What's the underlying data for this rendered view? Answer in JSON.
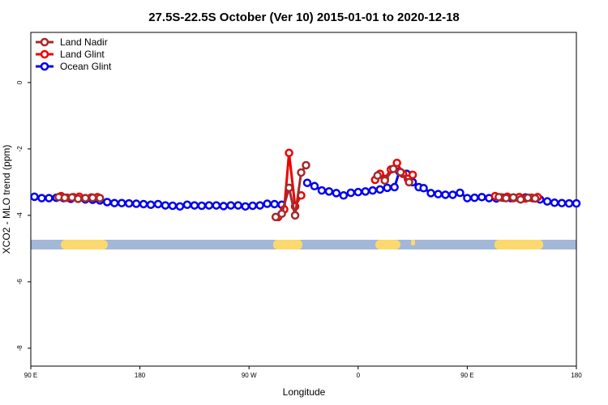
{
  "chart_data": {
    "type": "line",
    "title": "27.5S-22.5S October (Ver 10)   2015-01-01 to 2020-12-18",
    "x_label": "Longitude",
    "y_label": "XCO2 - MLO trend (ppm)",
    "xlim": [
      90,
      540
    ],
    "ylim": [
      -8.54,
      1.51
    ],
    "xticks": [
      {
        "value": 90,
        "label": "90 E"
      },
      180,
      {
        "value": 270,
        "label": "90 W"
      },
      {
        "value": 360,
        "label": "0"
      },
      {
        "value": 450,
        "label": "90 E"
      },
      {
        "value": 540,
        "label": "180"
      }
    ],
    "yticks": [
      0,
      -2,
      -4,
      -6,
      -8
    ],
    "legend": "top-left",
    "series": [
      {
        "name": "Land Nadir",
        "color": "#a52a2a",
        "x": [
          113,
          118,
          124,
          129,
          135,
          141,
          147,
          200,
          292,
          297,
          303,
          308,
          313,
          317,
          350,
          376,
          382,
          389,
          395,
          402,
          440,
          476,
          482,
          488,
          494,
          500,
          506
        ],
        "values": [
          -3.45,
          -3.47,
          -3.46,
          -3.5,
          -3.48,
          -3.47,
          -3.48,
          null,
          -4.05,
          -3.95,
          -3.17,
          -4.0,
          -2.71,
          -2.49,
          null,
          -2.8,
          -2.95,
          -2.6,
          -2.7,
          -3.0,
          null,
          -3.45,
          -3.48,
          -3.46,
          -3.52,
          -3.47,
          -3.49
        ]
      },
      {
        "name": "Land Glint",
        "color": "#ee0000",
        "x": [
          115,
          120,
          125,
          130,
          135,
          140,
          145,
          200,
          294,
          299,
          303,
          308,
          313,
          350,
          374,
          378,
          382,
          387,
          392,
          397,
          401,
          405,
          440,
          473,
          478,
          483,
          488,
          493,
          498,
          503,
          508
        ],
        "values": [
          -3.42,
          -3.47,
          -3.45,
          -3.44,
          -3.48,
          -3.46,
          -3.45,
          null,
          -4.05,
          -3.82,
          -2.12,
          -3.73,
          -3.4,
          null,
          -2.93,
          -2.75,
          -2.9,
          -2.62,
          -2.42,
          -2.75,
          -2.9,
          -2.78,
          null,
          -3.42,
          -3.46,
          -3.44,
          -3.48,
          -3.45,
          -3.49,
          -3.47,
          -3.45
        ]
      },
      {
        "name": "Ocean Glint",
        "color": "#0000ee",
        "x": [
          93,
          99,
          105,
          111,
          117,
          123,
          129,
          135,
          141,
          147,
          153,
          159,
          165,
          171,
          177,
          183,
          189,
          195,
          201,
          207,
          213,
          219,
          225,
          231,
          237,
          243,
          249,
          255,
          261,
          267,
          273,
          279,
          285,
          291,
          297,
          303,
          318,
          324,
          330,
          336,
          342,
          348,
          354,
          360,
          366,
          372,
          378,
          384,
          390,
          394,
          400,
          405,
          410,
          414,
          420,
          426,
          432,
          438,
          444,
          450,
          456,
          462,
          468,
          474,
          480,
          486,
          492,
          498,
          504,
          510,
          516,
          522,
          528,
          534,
          540
        ],
        "values": [
          -3.44,
          -3.48,
          -3.48,
          -3.47,
          -3.48,
          -3.5,
          -3.5,
          -3.52,
          -3.53,
          -3.55,
          -3.6,
          -3.63,
          -3.63,
          -3.64,
          -3.65,
          -3.66,
          -3.68,
          -3.66,
          -3.7,
          -3.71,
          -3.73,
          -3.68,
          -3.7,
          -3.71,
          -3.7,
          -3.7,
          -3.72,
          -3.7,
          -3.7,
          -3.73,
          -3.71,
          -3.7,
          -3.65,
          -3.66,
          -3.68,
          null,
          -3.02,
          -3.12,
          -3.25,
          -3.28,
          -3.33,
          -3.4,
          -3.32,
          -3.3,
          -3.28,
          -3.25,
          -3.22,
          -3.17,
          -3.15,
          -2.68,
          -2.75,
          -3.0,
          -3.15,
          -3.18,
          -3.33,
          -3.36,
          -3.38,
          -3.38,
          -3.32,
          -3.48,
          -3.47,
          -3.45,
          -3.48,
          -3.49,
          -3.47,
          -3.48,
          -3.47,
          -3.46,
          -3.48,
          -3.52,
          -3.58,
          -3.62,
          -3.63,
          -3.64,
          -3.64
        ]
      }
    ]
  }
}
